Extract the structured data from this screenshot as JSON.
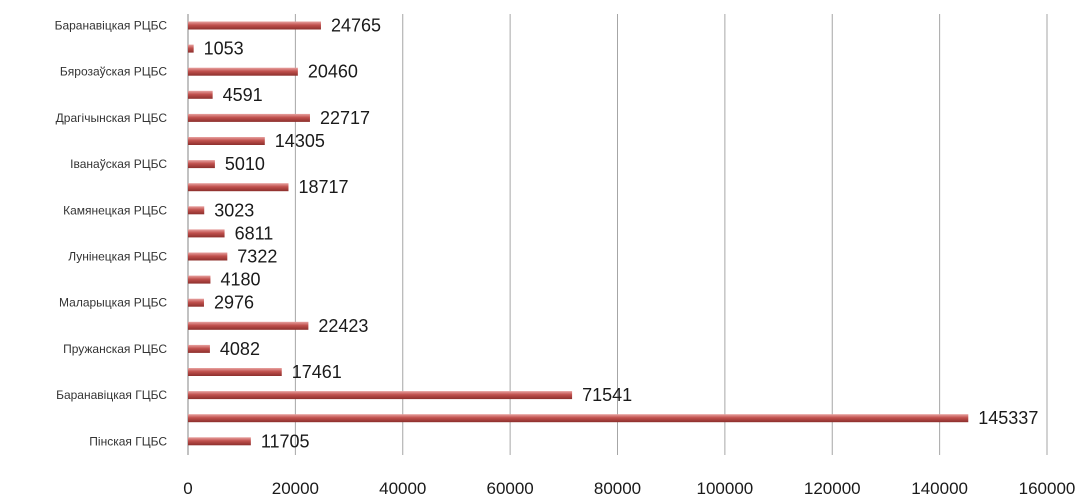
{
  "chart_data": {
    "type": "bar",
    "orientation": "horizontal",
    "title": "",
    "xlabel": "",
    "ylabel": "",
    "xlim": [
      0,
      160000
    ],
    "x_ticks": [
      0,
      20000,
      40000,
      60000,
      80000,
      100000,
      120000,
      140000,
      160000
    ],
    "grid": true,
    "legend": "none",
    "bar_color": "#c0504d",
    "categories": [
      "Баранавіцкая РЦБС",
      "",
      "Бярозаўская РЦБС",
      "",
      "Драгічынская РЦБС",
      "",
      "Іванаўская РЦБС",
      "",
      "Камянецкая РЦБС",
      "",
      "Лунінецкая РЦБС",
      "",
      "Маларыцкая РЦБС",
      "",
      "Пружанская РЦБС",
      "",
      "Баранавіцкая ГЦБС",
      "",
      "Пінская ГЦБС"
    ],
    "values": [
      24765,
      1053,
      20460,
      4591,
      22717,
      14305,
      5010,
      18717,
      3023,
      6811,
      7322,
      4180,
      2976,
      22423,
      4082,
      17461,
      71541,
      145337,
      11705
    ]
  }
}
